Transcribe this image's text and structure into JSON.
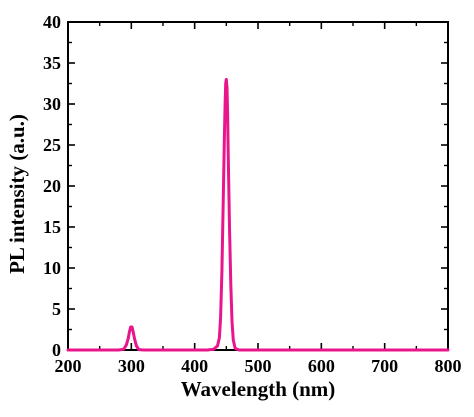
{
  "chart_data": {
    "type": "line",
    "xlabel": "Wavelength (nm)",
    "ylabel": "PL intensity (a.u.)",
    "xlim": [
      200,
      800
    ],
    "ylim": [
      0,
      40
    ],
    "x_ticks": [
      200,
      300,
      400,
      500,
      600,
      700,
      800
    ],
    "y_ticks": [
      0,
      5,
      10,
      15,
      20,
      25,
      30,
      35,
      40
    ],
    "grid": false,
    "legend": "none",
    "series": [
      {
        "color": "#e8158c",
        "x": [
          200,
          280,
          288,
          292,
          295,
          297,
          299,
          301,
          303,
          305,
          308,
          312,
          320,
          420,
          430,
          436,
          439,
          441,
          443,
          445,
          447,
          448,
          449,
          450,
          451,
          452,
          453,
          455,
          457,
          459,
          461,
          464,
          470,
          500,
          800
        ],
        "y": [
          0,
          0,
          0.1,
          0.6,
          1.4,
          2.2,
          2.8,
          2.8,
          2.2,
          1.4,
          0.5,
          0.05,
          0,
          0,
          0.1,
          0.5,
          1.5,
          4,
          9.5,
          18,
          26,
          30,
          32.5,
          33,
          32,
          29,
          24,
          15,
          8,
          3.5,
          1.2,
          0.2,
          0,
          0,
          0
        ]
      }
    ]
  }
}
